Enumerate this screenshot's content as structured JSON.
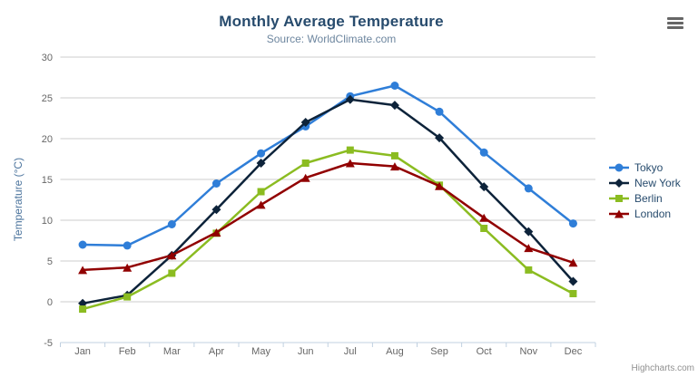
{
  "header": {
    "title": "Monthly Average Temperature",
    "subtitle": "Source: WorldClimate.com"
  },
  "credits": {
    "label": "Highcharts.com"
  },
  "icons": {
    "export_menu": "hamburger-menu"
  },
  "colors": {
    "title": "#274b6d",
    "subtitle": "#6d869f",
    "axis_title": "#4d759e",
    "axis_labels": "#666666",
    "gridline": "#cccccc",
    "axis_line": "#c0d0e0",
    "legend_text": "#274b6d",
    "background": "#ffffff"
  },
  "chart_data": {
    "type": "line",
    "title": "Monthly Average Temperature",
    "subtitle": "Source: WorldClimate.com",
    "xlabel": "",
    "ylabel": "Temperature (°C)",
    "categories": [
      "Jan",
      "Feb",
      "Mar",
      "Apr",
      "May",
      "Jun",
      "Jul",
      "Aug",
      "Sep",
      "Oct",
      "Nov",
      "Dec"
    ],
    "ylim": [
      -5,
      30
    ],
    "yticks": [
      -5,
      0,
      5,
      10,
      15,
      20,
      25,
      30
    ],
    "grid": true,
    "legend_position": "right",
    "series": [
      {
        "name": "Tokyo",
        "color": "#2f7ed8",
        "marker": "circle",
        "values": [
          7.0,
          6.9,
          9.5,
          14.5,
          18.2,
          21.5,
          25.2,
          26.5,
          23.3,
          18.3,
          13.9,
          9.6
        ]
      },
      {
        "name": "New York",
        "color": "#0d233a",
        "marker": "diamond",
        "values": [
          -0.2,
          0.8,
          5.7,
          11.3,
          17.0,
          22.0,
          24.8,
          24.1,
          20.1,
          14.1,
          8.6,
          2.5
        ]
      },
      {
        "name": "Berlin",
        "color": "#8bbc21",
        "marker": "square",
        "values": [
          -0.9,
          0.6,
          3.5,
          8.4,
          13.5,
          17.0,
          18.6,
          17.9,
          14.3,
          9.0,
          3.9,
          1.0
        ]
      },
      {
        "name": "London",
        "color": "#910000",
        "marker": "triangle",
        "values": [
          3.9,
          4.2,
          5.7,
          8.5,
          11.9,
          15.2,
          17.0,
          16.6,
          14.2,
          10.3,
          6.6,
          4.8
        ]
      }
    ]
  }
}
